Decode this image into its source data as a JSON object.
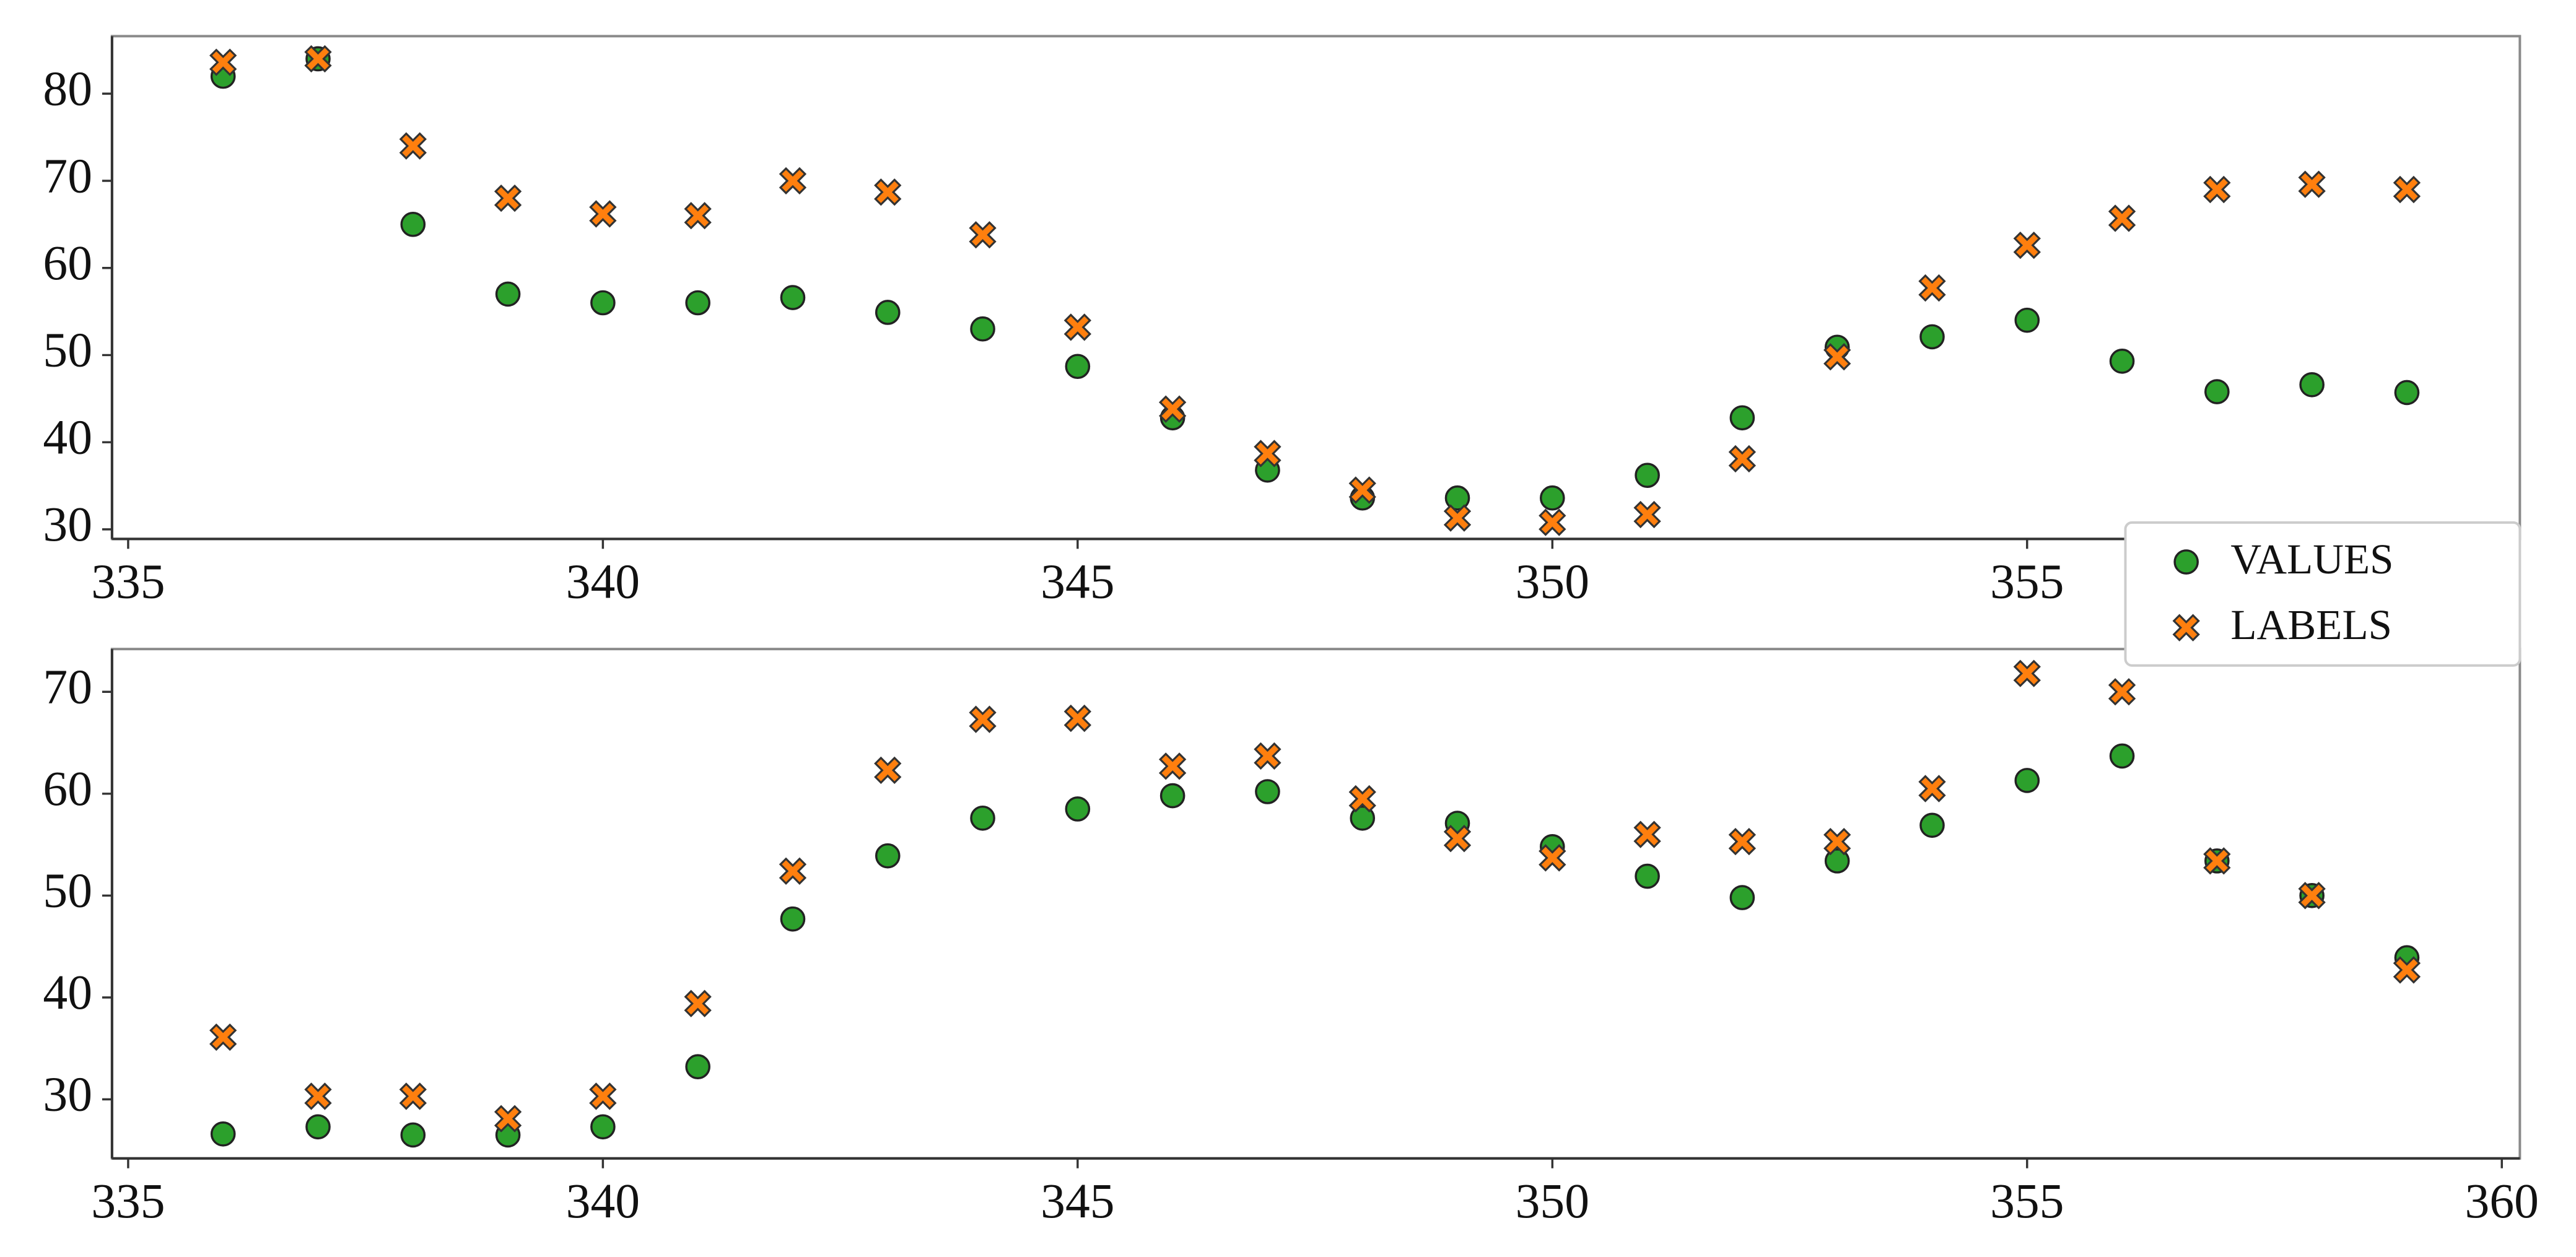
{
  "chart_data": [
    {
      "type": "scatter",
      "x": [
        336,
        337,
        338,
        339,
        340,
        341,
        342,
        343,
        344,
        345,
        346,
        347,
        348,
        349,
        350,
        351,
        352,
        353,
        354,
        355,
        356,
        357,
        358,
        359
      ],
      "series": [
        {
          "name": "VALUES",
          "color": "#2ca02c",
          "marker": "o",
          "values": [
            82,
            84,
            65,
            57,
            56,
            56,
            56.6,
            54.9,
            53,
            48.7,
            42.8,
            36.8,
            33.6,
            33.6,
            33.6,
            36.2,
            42.8,
            50.9,
            52.1,
            54,
            49.3,
            45.8,
            46.6,
            45.7
          ]
        },
        {
          "name": "LABELS",
          "color": "#ff7f0e",
          "marker": "X",
          "values": [
            83.6,
            84,
            74,
            68,
            66.2,
            66,
            70,
            68.7,
            63.8,
            53.2,
            43.8,
            38.7,
            34.5,
            31.3,
            30.8,
            31.7,
            38.1,
            49.8,
            57.7,
            62.6,
            65.7,
            69,
            69.6,
            69
          ]
        }
      ],
      "xlim": [
        334.83,
        360.19
      ],
      "xticks": [
        335,
        340,
        345,
        350,
        355
      ],
      "ylim": [
        28.9,
        86.6
      ],
      "yticks": [
        30,
        40,
        50,
        60,
        70,
        80
      ],
      "legend": "right"
    },
    {
      "type": "scatter",
      "x": [
        336,
        337,
        338,
        339,
        340,
        341,
        342,
        343,
        344,
        345,
        346,
        347,
        348,
        349,
        350,
        351,
        352,
        353,
        354,
        355,
        356,
        357,
        358,
        359
      ],
      "series": [
        {
          "name": "VALUES",
          "color": "#2ca02c",
          "marker": "o",
          "values": [
            26.6,
            27.3,
            26.5,
            26.5,
            27.3,
            33.2,
            47.7,
            53.9,
            57.6,
            58.5,
            59.8,
            60.2,
            57.6,
            57.1,
            54.8,
            51.9,
            49.8,
            53.4,
            56.9,
            61.3,
            63.7,
            53.4,
            50,
            43.9
          ]
        },
        {
          "name": "LABELS",
          "color": "#ff7f0e",
          "marker": "X",
          "values": [
            36.1,
            30.3,
            30.3,
            28.1,
            30.3,
            39.4,
            52.4,
            62.3,
            67.3,
            67.4,
            62.7,
            63.7,
            59.5,
            55.6,
            53.7,
            56,
            55.3,
            55.3,
            60.5,
            71.8,
            70,
            53.4,
            50,
            42.7
          ]
        }
      ],
      "xlim": [
        334.83,
        360.19
      ],
      "xticks": [
        335,
        340,
        345,
        350,
        355,
        360
      ],
      "ylim": [
        24.2,
        74.2
      ],
      "yticks": [
        30,
        40,
        50,
        60,
        70
      ]
    }
  ]
}
